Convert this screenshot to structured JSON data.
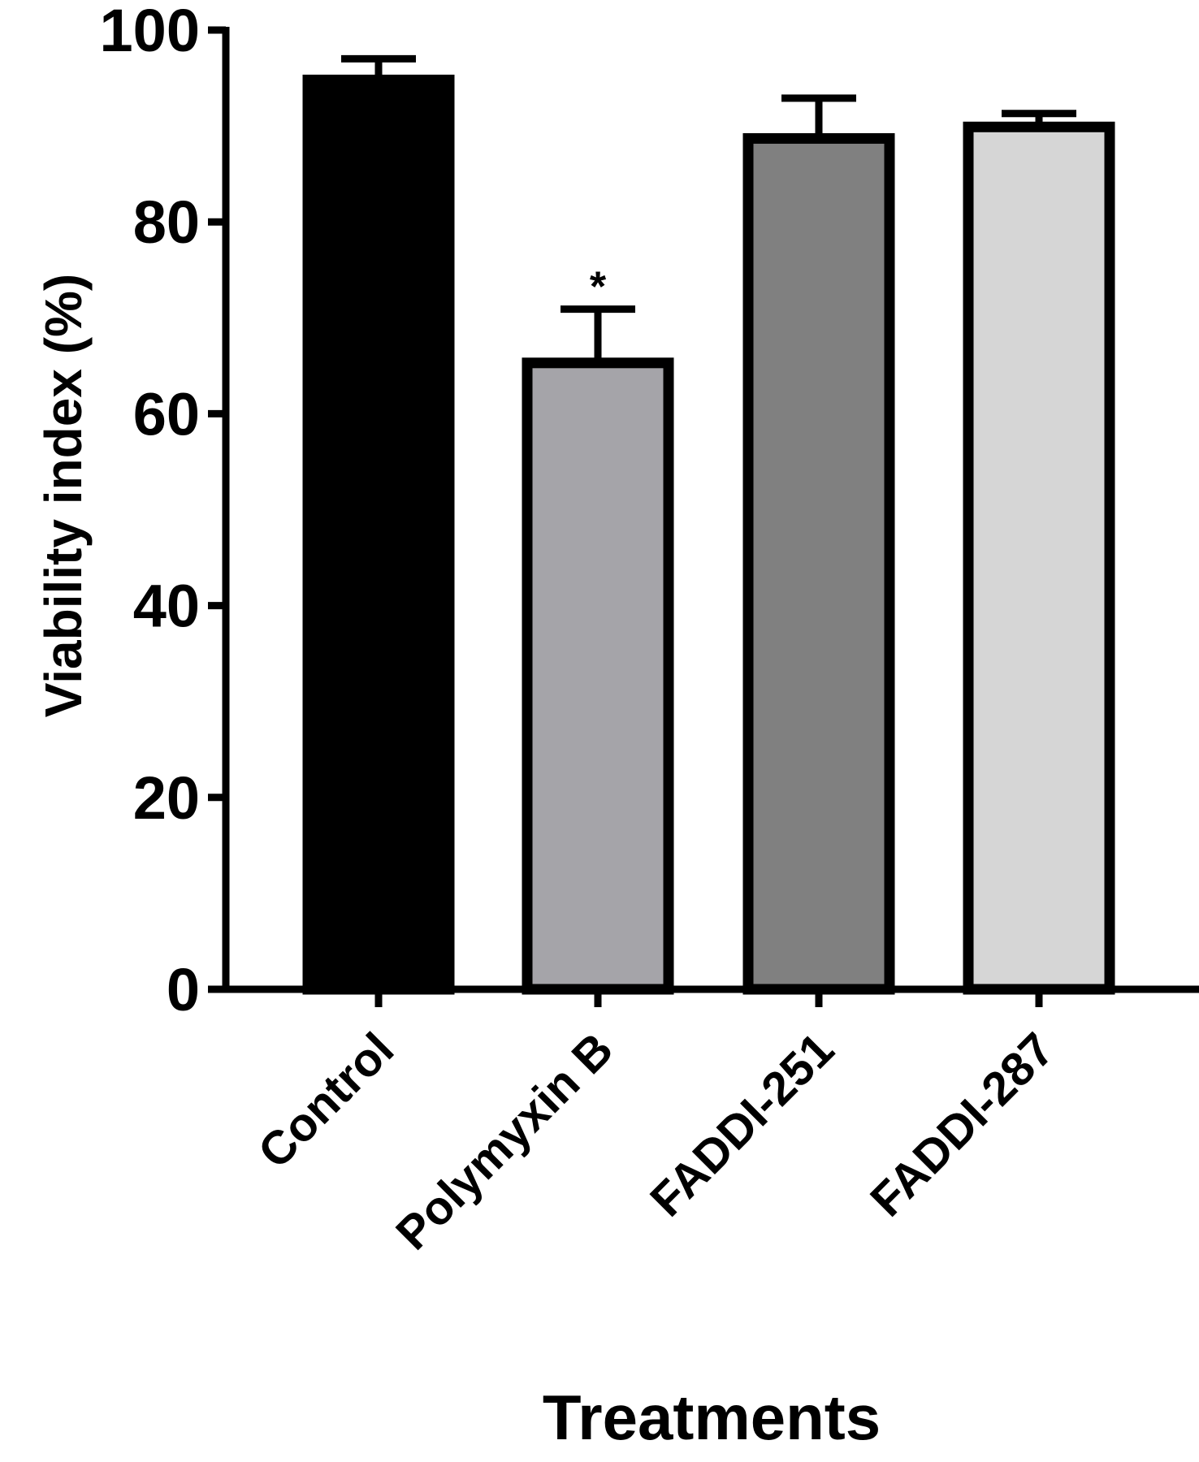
{
  "chart_data": {
    "type": "bar",
    "xlabel": "Treatments",
    "ylabel": "Viability index (%)",
    "ylim": [
      0,
      100
    ],
    "yticks": [
      0,
      20,
      40,
      60,
      80,
      100
    ],
    "categories": [
      "Control",
      "Polymyxin B",
      "FADDI-251",
      "FADDI-287"
    ],
    "values": [
      94.8,
      65.3,
      88.7,
      89.9
    ],
    "errors": [
      2.2,
      5.6,
      4.2,
      1.4
    ],
    "annotations": [
      "",
      "*",
      "",
      ""
    ],
    "colors": [
      "#000000",
      "#a5a4a9",
      "#808080",
      "#d6d6d6"
    ],
    "grid": false,
    "legend": "none"
  }
}
